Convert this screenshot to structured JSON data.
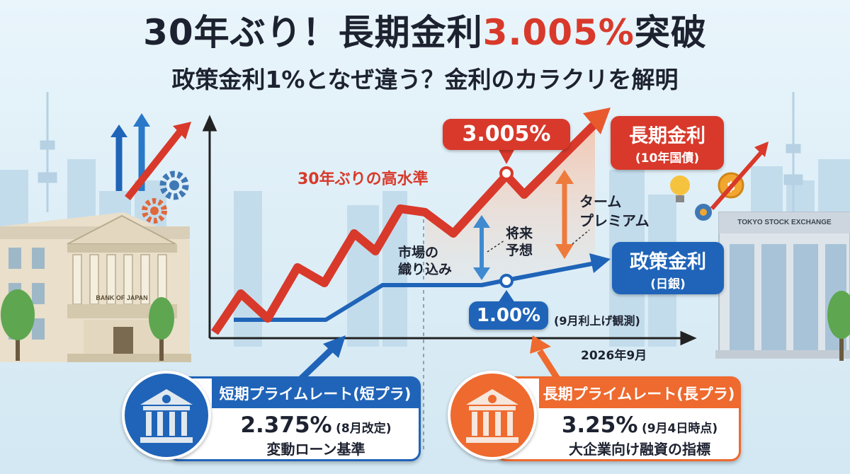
{
  "header": {
    "title_part1": "30年ぶり！長期金利",
    "title_highlight": "3.005%",
    "title_part2": "突破",
    "subtitle": "政策金利1%となぜ違う？金利のカラクリを解明"
  },
  "chart": {
    "long_rate_value": "3.005%",
    "long_rate_note": "30年ぶりの高水準",
    "long_rate_label": "長期金利",
    "long_rate_sub": "(10年国債)",
    "policy_rate_value": "1.00%",
    "policy_rate_note": "(9月利上げ観測)",
    "policy_rate_label": "政策金利",
    "policy_rate_sub": "(日銀)",
    "term_premium_1": "ターム",
    "term_premium_2": "プレミアム",
    "future_1": "将来",
    "future_2": "予想",
    "market_1": "市場の",
    "market_2": "織り込み",
    "date_label": "2026年9月"
  },
  "buildings": {
    "boj_sign": "BANK OF JAPAN",
    "tse_sign": "TOKYO STOCK EXCHANGE"
  },
  "cards": {
    "short": {
      "header": "短期プライムレート(短プラ)",
      "value": "2.375%",
      "value_note": "(8月改定)",
      "desc": "変動ローン基準"
    },
    "long": {
      "header": "長期プライムレート(長プラ)",
      "value": "3.25%",
      "value_note": "(9月4日時点)",
      "desc": "大企業向け融資の指標"
    }
  },
  "colors": {
    "red": "#d8392b",
    "blue": "#1f64b8",
    "dark": "#1d2230"
  },
  "icons": [
    "bank-icon",
    "gear-icon",
    "lightbulb-icon",
    "coin-icon",
    "arrow-up-icon"
  ]
}
